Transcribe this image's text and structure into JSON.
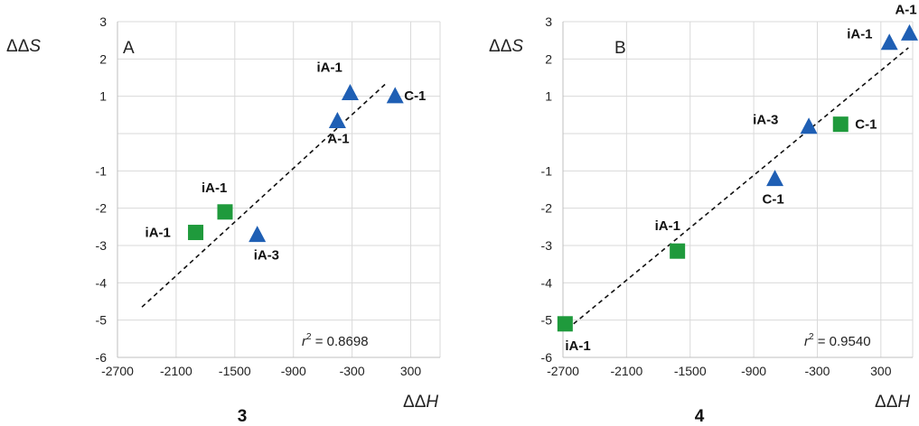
{
  "chart_data": [
    {
      "type": "scatter",
      "panel_label": "A",
      "number_label": "3",
      "xlabel": "ΔΔH",
      "ylabel": "ΔΔS",
      "xlim": [
        -2700,
        600
      ],
      "ylim": [
        -6,
        3
      ],
      "x_ticks": [
        "-2700",
        "-2100",
        "-1500",
        "-900",
        "-300",
        "300"
      ],
      "y_ticks": [
        "3",
        "2",
        "1",
        "-1",
        "-2",
        "-3",
        "-4",
        "-5",
        "-6"
      ],
      "grid": true,
      "r2_text": {
        "prefix": "r",
        "sup": "2",
        "value": " = 0.8698"
      },
      "series": [
        {
          "marker": "triangle",
          "color": "#1f5fb4",
          "points": [
            {
              "label": "iA-1",
              "x": -320,
              "y": 1.1
            },
            {
              "label": "C-1",
              "x": 140,
              "y": 1.02
            },
            {
              "label": "A-1",
              "x": -450,
              "y": 0.35
            },
            {
              "label": "iA-3",
              "x": -1270,
              "y": -2.7
            }
          ]
        },
        {
          "marker": "square",
          "color": "#1f9a3c",
          "points": [
            {
              "label": "iA-1",
              "x": -1600,
              "y": -2.1
            },
            {
              "label": "iA-1",
              "x": -1900,
              "y": -2.65
            }
          ]
        }
      ],
      "trendline": {
        "x": [
          -2450,
          50
        ],
        "y": [
          -4.65,
          1.35
        ]
      }
    },
    {
      "type": "scatter",
      "panel_label": "B",
      "number_label": "4",
      "xlabel": "ΔΔH",
      "ylabel": "ΔΔS",
      "xlim": [
        -2700,
        600
      ],
      "ylim": [
        -6,
        3
      ],
      "x_ticks": [
        "-2700",
        "-2100",
        "-1500",
        "-900",
        "-300",
        "300"
      ],
      "y_ticks": [
        "3",
        "2",
        "1",
        "-1",
        "-2",
        "-3",
        "-4",
        "-5",
        "-6"
      ],
      "grid": true,
      "r2_text": {
        "prefix": "r",
        "sup": "2",
        "value": " = 0.9540"
      },
      "series": [
        {
          "marker": "triangle",
          "color": "#1f5fb4",
          "points": [
            {
              "label": "A-1",
              "x": 570,
              "y": 2.7
            },
            {
              "label": "iA-1",
              "x": 380,
              "y": 2.45
            },
            {
              "label": "iA-3",
              "x": -380,
              "y": 0.2
            },
            {
              "label": "C-1",
              "x": -700,
              "y": -1.2
            }
          ]
        },
        {
          "marker": "square",
          "color": "#1f9a3c",
          "points": [
            {
              "label": "C-1",
              "x": -80,
              "y": 0.25
            },
            {
              "label": "iA-1",
              "x": -1620,
              "y": -3.15
            },
            {
              "label": "iA-1",
              "x": -2680,
              "y": -5.1
            }
          ]
        }
      ],
      "trendline": {
        "x": [
          -2600,
          560
        ],
        "y": [
          -5.1,
          2.3
        ]
      }
    }
  ]
}
